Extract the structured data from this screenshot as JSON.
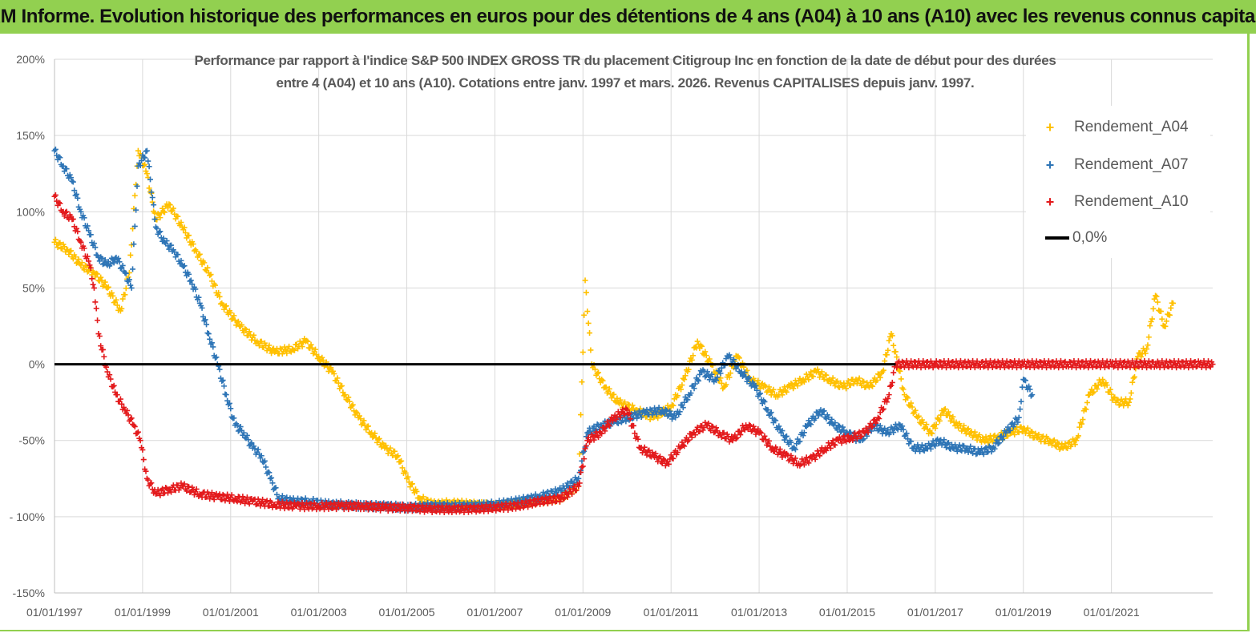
{
  "banner": {
    "title": "ADAM Informe. Evolution historique des performances en euros pour des détentions de 4 ans (A04) à 10 ans (A10) avec les revenus connus capitalisés"
  },
  "colors": {
    "banner_bg": "#92d050",
    "A04": "#ffc000",
    "A07": "#2e75b6",
    "A10": "#e31a1c",
    "zero": "#000000",
    "grid": "#d9d9d9",
    "text": "#595959"
  },
  "chart_data": {
    "type": "scatter",
    "title_line1": "Performance par rapport à l'indice S&P 500 INDEX GROSS TR  du placement Citigroup Inc en fonction de la date de début pour des durées",
    "title_line2": "entre 4 (A04) et 10 ans (A10). Cotations entre janv. 1997 et mars. 2026. Revenus CAPITALISES depuis janv. 1997.",
    "xlabel": "",
    "ylabel": "",
    "xlim": [
      1997.0,
      2023.3
    ],
    "ylim": [
      -150,
      200
    ],
    "y_ticks": [
      200,
      150,
      100,
      50,
      0,
      -50,
      -100,
      -150
    ],
    "y_tick_labels": [
      "200%",
      "150%",
      "100%",
      "50%",
      "0%",
      "-50%",
      "- 100%",
      "-150%"
    ],
    "x_ticks": [
      1997,
      1999,
      2001,
      2003,
      2005,
      2007,
      2009,
      2011,
      2013,
      2015,
      2017,
      2019,
      2021
    ],
    "x_tick_labels": [
      "01/01/1997",
      "01/01/1999",
      "01/01/2001",
      "01/01/2003",
      "01/01/2005",
      "01/01/2007",
      "01/01/2009",
      "01/01/2011",
      "01/01/2013",
      "01/01/2015",
      "01/01/2017",
      "01/01/2019",
      "01/01/2021"
    ],
    "legend_position": "top-right",
    "legend": [
      "Rendement_A04",
      "Rendement_A07",
      "Rendement_A10",
      "0,0%"
    ],
    "series": [
      {
        "name": "Rendement_A04",
        "color": "#ffc000",
        "x": [
          1997.0,
          1997.3,
          1997.6,
          1997.9,
          1998.2,
          1998.5,
          1998.7,
          1998.9,
          1999.1,
          1999.3,
          1999.6,
          1999.9,
          2000.2,
          2000.5,
          2000.8,
          2001.2,
          2001.6,
          2002.0,
          2002.4,
          2002.7,
          2003.0,
          2003.3,
          2003.6,
          2003.9,
          2004.2,
          2004.5,
          2004.8,
          2005.0,
          2005.3,
          2005.6,
          2006.0,
          2006.5,
          2007.0,
          2007.5,
          2008.0,
          2008.5,
          2008.9,
          2009.05,
          2009.2,
          2009.5,
          2009.8,
          2010.2,
          2010.6,
          2011.0,
          2011.3,
          2011.6,
          2011.9,
          2012.2,
          2012.5,
          2012.8,
          2013.1,
          2013.4,
          2013.7,
          2014.0,
          2014.3,
          2014.6,
          2014.9,
          2015.2,
          2015.5,
          2015.8,
          2016.0,
          2016.3,
          2016.6,
          2016.9,
          2017.2,
          2017.5,
          2017.8,
          2018.1,
          2018.4,
          2018.7,
          2019.0,
          2019.3,
          2019.6,
          2019.9,
          2020.2,
          2020.5,
          2020.8,
          2021.1,
          2021.4,
          2021.6,
          2021.8,
          2022.0,
          2022.2,
          2022.4
        ],
        "values": [
          80,
          75,
          65,
          60,
          50,
          35,
          60,
          140,
          125,
          95,
          105,
          90,
          75,
          60,
          40,
          25,
          15,
          8,
          10,
          15,
          5,
          -5,
          -20,
          -35,
          -45,
          -55,
          -60,
          -75,
          -88,
          -92,
          -91,
          -92,
          -93,
          -92,
          -90,
          -88,
          -80,
          55,
          0,
          -15,
          -25,
          -30,
          -35,
          -28,
          -10,
          15,
          0,
          -15,
          5,
          -10,
          -15,
          -20,
          -15,
          -10,
          -5,
          -10,
          -15,
          -10,
          -15,
          -5,
          20,
          -20,
          -35,
          -45,
          -30,
          -40,
          -45,
          -50,
          -48,
          -45,
          -42,
          -48,
          -50,
          -55,
          -50,
          -20,
          -10,
          -25,
          -25,
          5,
          10,
          45,
          25,
          40
        ]
      },
      {
        "name": "Rendement_A07",
        "color": "#2e75b6",
        "x": [
          1997.0,
          1997.2,
          1997.4,
          1997.6,
          1997.8,
          1998.0,
          1998.2,
          1998.4,
          1998.6,
          1998.75,
          1998.9,
          1999.1,
          1999.3,
          1999.5,
          1999.7,
          1999.9,
          2000.1,
          2000.3,
          2000.5,
          2000.7,
          2000.9,
          2001.1,
          2001.3,
          2001.5,
          2001.7,
          2001.9,
          2002.1,
          2002.4,
          2002.8,
          2003.2,
          2003.6,
          2004.0,
          2004.5,
          2005.0,
          2005.5,
          2006.0,
          2006.5,
          2007.0,
          2007.5,
          2008.0,
          2008.5,
          2008.9,
          2009.1,
          2009.4,
          2009.7,
          2010.0,
          2010.4,
          2010.8,
          2011.1,
          2011.4,
          2011.7,
          2012.0,
          2012.3,
          2012.6,
          2012.9,
          2013.2,
          2013.5,
          2013.8,
          2014.1,
          2014.4,
          2014.7,
          2015.0,
          2015.3,
          2015.6,
          2015.9,
          2016.2,
          2016.5,
          2016.8,
          2017.1,
          2017.4,
          2017.7,
          2018.0,
          2018.3,
          2018.6,
          2018.9,
          2019.0,
          2019.2
        ],
        "values": [
          140,
          130,
          120,
          100,
          85,
          70,
          65,
          70,
          60,
          50,
          130,
          140,
          90,
          80,
          75,
          65,
          55,
          40,
          20,
          0,
          -20,
          -40,
          -45,
          -55,
          -60,
          -75,
          -88,
          -90,
          -90,
          -92,
          -92,
          -93,
          -93,
          -94,
          -93,
          -93,
          -93,
          -92,
          -90,
          -87,
          -83,
          -75,
          -45,
          -40,
          -38,
          -35,
          -32,
          -30,
          -35,
          -20,
          -5,
          -10,
          5,
          -5,
          -15,
          -30,
          -45,
          -55,
          -40,
          -30,
          -40,
          -45,
          -50,
          -40,
          -45,
          -40,
          -55,
          -55,
          -50,
          -55,
          -55,
          -58,
          -55,
          -45,
          -35,
          -10,
          -20
        ]
      },
      {
        "name": "Rendement_A10",
        "color": "#e31a1c",
        "x": [
          1997.0,
          1997.2,
          1997.4,
          1997.6,
          1997.8,
          1997.9,
          1998.0,
          1998.2,
          1998.4,
          1998.6,
          1998.8,
          1998.95,
          1999.1,
          1999.3,
          1999.6,
          1999.9,
          2000.3,
          2000.7,
          2001.1,
          2001.5,
          2002.0,
          2002.5,
          2003.0,
          2003.5,
          2004.0,
          2004.5,
          2005.0,
          2005.5,
          2006.0,
          2006.5,
          2007.0,
          2007.5,
          2008.0,
          2008.5,
          2008.9,
          2009.1,
          2009.4,
          2009.7,
          2010.0,
          2010.3,
          2010.6,
          2010.9,
          2011.2,
          2011.5,
          2011.8,
          2012.1,
          2012.4,
          2012.7,
          2013.0,
          2013.3,
          2013.6,
          2013.9,
          2014.2,
          2014.5,
          2014.8,
          2015.1,
          2015.4,
          2015.7,
          2015.95,
          2016.1,
          2017.0,
          2018.0,
          2019.0,
          2020.0,
          2021.0,
          2022.0,
          2023.0,
          2023.3
        ],
        "values": [
          110,
          100,
          95,
          80,
          65,
          50,
          20,
          -5,
          -20,
          -30,
          -40,
          -50,
          -75,
          -85,
          -82,
          -80,
          -85,
          -87,
          -88,
          -90,
          -92,
          -93,
          -93,
          -93,
          -93,
          -94,
          -94,
          -95,
          -95,
          -95,
          -94,
          -93,
          -90,
          -88,
          -80,
          -50,
          -45,
          -35,
          -30,
          -55,
          -60,
          -65,
          -55,
          -45,
          -40,
          -45,
          -50,
          -40,
          -45,
          -55,
          -60,
          -65,
          -62,
          -55,
          -50,
          -48,
          -45,
          -35,
          -20,
          0,
          0,
          0,
          0,
          0,
          0,
          0,
          0,
          0
        ]
      },
      {
        "name": "0,0%",
        "color": "#000000",
        "x": [
          1997.0,
          2016.1
        ],
        "values": [
          0,
          0
        ]
      }
    ]
  }
}
